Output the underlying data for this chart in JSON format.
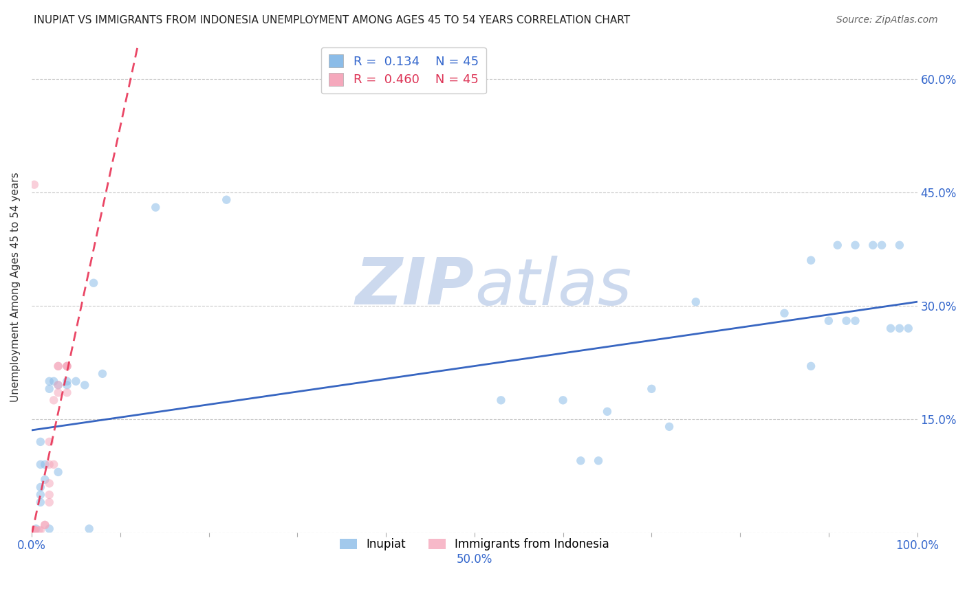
{
  "title": "INUPIAT VS IMMIGRANTS FROM INDONESIA UNEMPLOYMENT AMONG AGES 45 TO 54 YEARS CORRELATION CHART",
  "source": "Source: ZipAtlas.com",
  "ylabel": "Unemployment Among Ages 45 to 54 years",
  "xlim": [
    0.0,
    1.0
  ],
  "ylim": [
    0.0,
    0.65
  ],
  "xticks": [
    0.0,
    0.1,
    0.2,
    0.3,
    0.4,
    0.5,
    0.6,
    0.7,
    0.8,
    0.9,
    1.0
  ],
  "xticklabels": [
    "0.0%",
    "",
    "",
    "",
    "",
    "",
    "",
    "",
    "",
    "",
    "100.0%"
  ],
  "x_label_50_pos": 0.5,
  "yticks": [
    0.0,
    0.15,
    0.3,
    0.45,
    0.6
  ],
  "yticklabels_right": [
    "",
    "15.0%",
    "30.0%",
    "45.0%",
    "60.0%"
  ],
  "grid_color": "#c8c8c8",
  "background_color": "#ffffff",
  "watermark_zip": "ZIP",
  "watermark_atlas": "atlas",
  "watermark_color": "#ccd9ee",
  "inupiat_color": "#8bbce8",
  "indonesia_color": "#f5a8bc",
  "inupiat_line_color": "#2255bb",
  "indonesia_line_color": "#e83355",
  "inupiat_R": "0.134",
  "inupiat_N": "45",
  "indonesia_R": "0.460",
  "indonesia_N": "45",
  "legend_fontsize": 13,
  "title_fontsize": 11,
  "inupiat_x": [
    0.005,
    0.01,
    0.01,
    0.01,
    0.01,
    0.01,
    0.015,
    0.015,
    0.02,
    0.02,
    0.02,
    0.025,
    0.03,
    0.03,
    0.04,
    0.04,
    0.05,
    0.06,
    0.065,
    0.07,
    0.08,
    0.14,
    0.22,
    0.53,
    0.6,
    0.62,
    0.64,
    0.65,
    0.7,
    0.72,
    0.75,
    0.85,
    0.88,
    0.88,
    0.9,
    0.91,
    0.92,
    0.93,
    0.93,
    0.95,
    0.96,
    0.97,
    0.98,
    0.98,
    0.99
  ],
  "inupiat_y": [
    0.005,
    0.04,
    0.05,
    0.06,
    0.09,
    0.12,
    0.09,
    0.07,
    0.005,
    0.19,
    0.2,
    0.2,
    0.195,
    0.08,
    0.195,
    0.2,
    0.2,
    0.195,
    0.005,
    0.33,
    0.21,
    0.43,
    0.44,
    0.175,
    0.175,
    0.095,
    0.095,
    0.16,
    0.19,
    0.14,
    0.305,
    0.29,
    0.22,
    0.36,
    0.28,
    0.38,
    0.28,
    0.28,
    0.38,
    0.38,
    0.38,
    0.27,
    0.27,
    0.38,
    0.27
  ],
  "indonesia_x": [
    0.003,
    0.003,
    0.003,
    0.003,
    0.003,
    0.003,
    0.003,
    0.003,
    0.003,
    0.003,
    0.003,
    0.003,
    0.003,
    0.003,
    0.003,
    0.003,
    0.003,
    0.003,
    0.003,
    0.003,
    0.003,
    0.003,
    0.003,
    0.003,
    0.003,
    0.003,
    0.008,
    0.01,
    0.015,
    0.015,
    0.02,
    0.02,
    0.02,
    0.02,
    0.02,
    0.025,
    0.025,
    0.03,
    0.03,
    0.03,
    0.03,
    0.04,
    0.04,
    0.04,
    0.04
  ],
  "indonesia_y": [
    0.003,
    0.003,
    0.003,
    0.003,
    0.003,
    0.003,
    0.003,
    0.003,
    0.003,
    0.003,
    0.003,
    0.003,
    0.003,
    0.003,
    0.003,
    0.003,
    0.003,
    0.003,
    0.003,
    0.003,
    0.003,
    0.003,
    0.003,
    0.003,
    0.003,
    0.46,
    0.003,
    0.003,
    0.01,
    0.01,
    0.04,
    0.05,
    0.065,
    0.09,
    0.12,
    0.09,
    0.175,
    0.185,
    0.195,
    0.22,
    0.22,
    0.185,
    0.22,
    0.22,
    0.22
  ],
  "marker_size": 80,
  "marker_alpha": 0.55,
  "line_alpha": 0.9
}
